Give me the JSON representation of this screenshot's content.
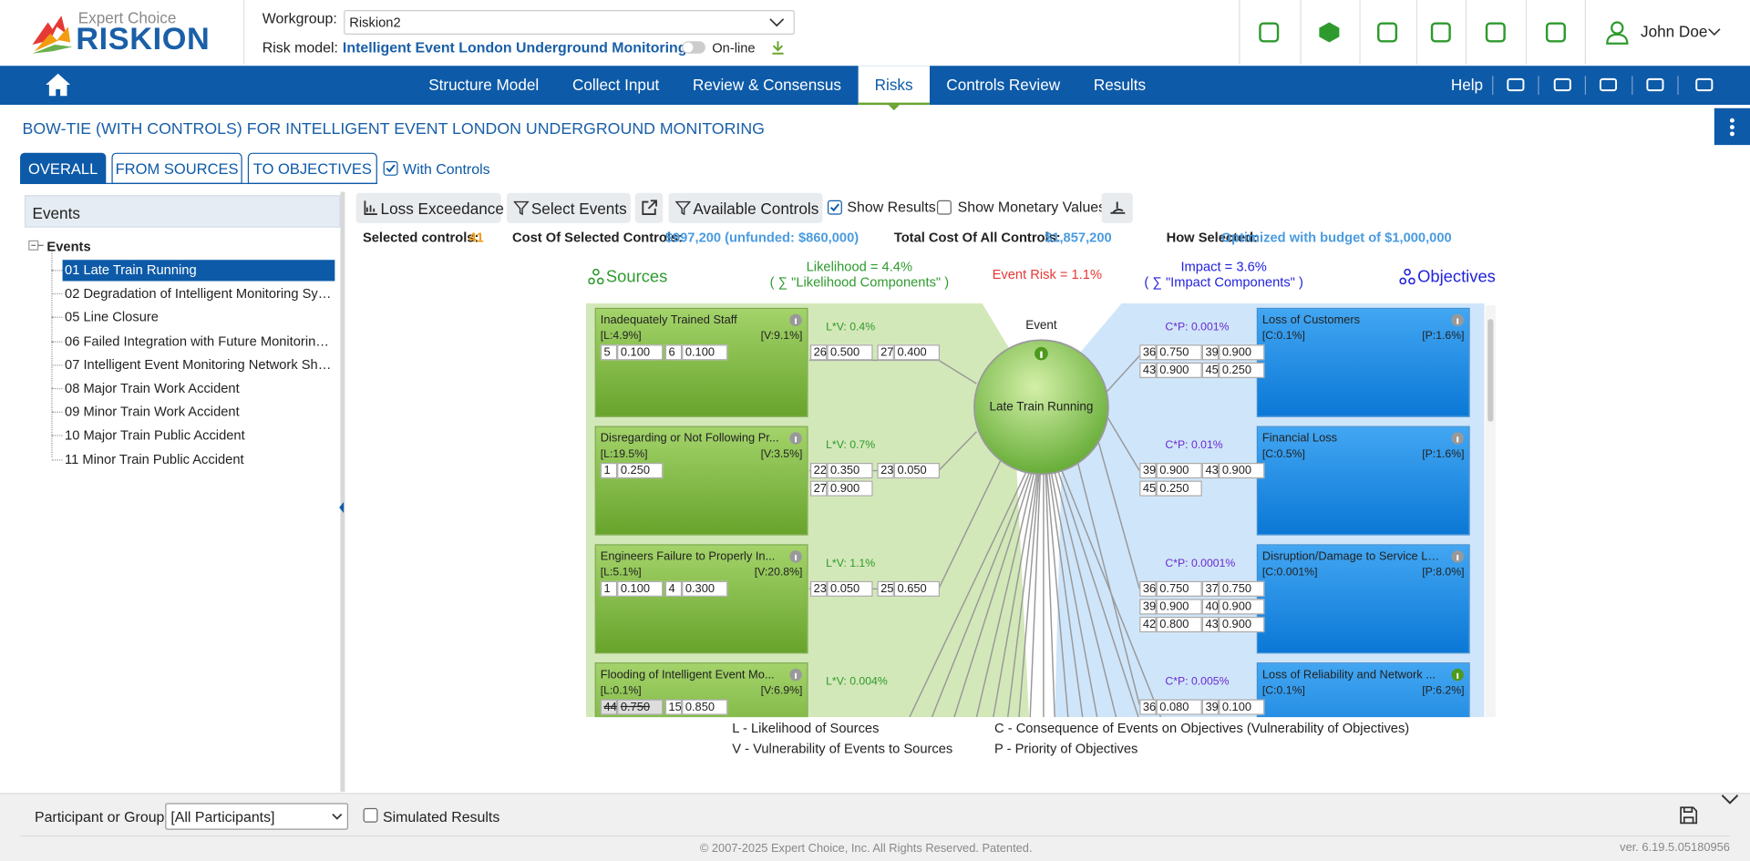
{
  "header": {
    "logo_top": "Expert Choice",
    "logo_main": "RISKION",
    "workgroup_label": "Workgroup:",
    "workgroup": "Riskion2",
    "risk_model_label": "Risk model:",
    "risk_model": "Intelligent Event London Underground Monitoring",
    "online": "On-line",
    "user": "John Doe"
  },
  "nav": {
    "tabs": [
      "Structure Model",
      "Collect Input",
      "Review & Consensus",
      "Risks",
      "Controls Review",
      "Results"
    ],
    "active": 3,
    "help": "Help"
  },
  "page_title": "BOW-TIE (WITH CONTROLS) FOR INTELLIGENT EVENT LONDON UNDERGROUND MONITORING",
  "view_tabs": {
    "tabs": [
      "OVERALL",
      "FROM SOURCES",
      "TO OBJECTIVES"
    ],
    "active": 0,
    "with_controls": {
      "label": "With Controls",
      "checked": true
    }
  },
  "events_panel": {
    "title": "Events",
    "root": "Events",
    "selected": 0,
    "items": [
      "01 Late Train Running",
      "02 Degradation of Intelligent Monitoring Syste...",
      "05 Line Closure",
      "06 Failed Integration with Future Monitoring S...",
      "07 Intelligent Event Monitoring Network Shut ...",
      "08 Major Train Work Accident",
      "09 Minor Train Work Accident",
      "10 Major Train Public Accident",
      "11 Minor Train Public Accident"
    ]
  },
  "toolbar": {
    "buttons": [
      "Loss Exceedance",
      "Select Events",
      "Available Controls"
    ],
    "show_results": {
      "label": "Show Results",
      "checked": true
    },
    "show_monetary": {
      "label": "Show Monetary Values",
      "checked": false
    }
  },
  "summary": [
    {
      "label": "Selected controls:",
      "value": "41"
    },
    {
      "label": "Cost Of Selected Controls:",
      "value": "$997,200 (unfunded: $860,000)"
    },
    {
      "label": "Total Cost Of All Controls:",
      "value": "$1,857,200"
    },
    {
      "label": "How Selected:",
      "value": "Optimized with budget of $1,000,000"
    }
  ],
  "bowtie": {
    "sources_label": "Sources",
    "objectives_label": "Objectives",
    "likelihood": "Likelihood = 4.4%",
    "likelihood_sub": "( ∑ \"Likelihood Components\" )",
    "event_risk": "Event Risk = 1.1%",
    "impact": "Impact = 3.6%",
    "impact_sub": "( ∑ \"Impact Components\" )",
    "event_label": "Event",
    "event_name": "Late Train Running",
    "sources": [
      {
        "name": "Inadequately Trained Staff",
        "l": "[L:4.9%]",
        "v": "[V:9.1%]",
        "controls": [
          {
            "id": "5",
            "value": "0.100"
          },
          {
            "id": "6",
            "value": "0.100"
          }
        ],
        "lv": "L*V: 0.4%",
        "links": [
          {
            "id": "26",
            "value": "0.500"
          },
          {
            "id": "27",
            "value": "0.400"
          }
        ]
      },
      {
        "name": "Disregarding or Not Following Pr...",
        "l": "[L:19.5%]",
        "v": "[V:3.5%]",
        "controls": [
          {
            "id": "1",
            "value": "0.250"
          }
        ],
        "lv": "L*V: 0.7%",
        "links": [
          {
            "id": "22",
            "value": "0.350"
          },
          {
            "id": "23",
            "value": "0.050"
          },
          {
            "id": "27",
            "value": "0.900"
          }
        ]
      },
      {
        "name": "Engineers Failure to Properly In...",
        "l": "[L:5.1%]",
        "v": "[V:20.8%]",
        "controls": [
          {
            "id": "1",
            "value": "0.100"
          },
          {
            "id": "4",
            "value": "0.300"
          }
        ],
        "lv": "L*V: 1.1%",
        "links": [
          {
            "id": "23",
            "value": "0.050"
          },
          {
            "id": "25",
            "value": "0.650"
          }
        ]
      },
      {
        "name": "Flooding of Intelligent Event Mo...",
        "l": "[L:0.1%]",
        "v": "[V:6.9%]",
        "controls": [
          {
            "id": "44",
            "value": "0.750",
            "struck": true
          },
          {
            "id": "15",
            "value": "0.850"
          }
        ],
        "lv": "L*V: 0.004%",
        "links": []
      }
    ],
    "objectives": [
      {
        "name": "Loss of Customers",
        "c": "[C:0.1%]",
        "p": "[P:1.6%]",
        "cp": "C*P: 0.001%",
        "links": [
          {
            "id": "36",
            "value": "0.750"
          },
          {
            "id": "39",
            "value": "0.900"
          },
          {
            "id": "43",
            "value": "0.900"
          },
          {
            "id": "45",
            "value": "0.250"
          }
        ]
      },
      {
        "name": "Financial Loss",
        "c": "[C:0.5%]",
        "p": "[P:1.6%]",
        "cp": "C*P: 0.01%",
        "links": [
          {
            "id": "39",
            "value": "0.900"
          },
          {
            "id": "43",
            "value": "0.900"
          },
          {
            "id": "45",
            "value": "0.250"
          }
        ]
      },
      {
        "name": "Disruption/Damage to Service Lin...",
        "c": "[C:0.001%]",
        "p": "[P:8.0%]",
        "cp": "C*P: 0.0001%",
        "links": [
          {
            "id": "36",
            "value": "0.750"
          },
          {
            "id": "37",
            "value": "0.750"
          },
          {
            "id": "39",
            "value": "0.900"
          },
          {
            "id": "40",
            "value": "0.900"
          },
          {
            "id": "42",
            "value": "0.800"
          },
          {
            "id": "43",
            "value": "0.900"
          }
        ]
      },
      {
        "name": "Loss of Reliability and Network ...",
        "c": "[C:0.1%]",
        "p": "[P:6.2%]",
        "cp": "C*P: 0.005%",
        "links": [
          {
            "id": "36",
            "value": "0.080"
          },
          {
            "id": "39",
            "value": "0.100"
          }
        ]
      }
    ]
  },
  "legend": [
    "L - Likelihood of Sources",
    "V - Vulnerability of Events to Sources",
    "C - Consequence of Events on Objectives (Vulnerability of Objectives)",
    "P - Priority of Objectives"
  ],
  "footer": {
    "participant_label": "Participant or Group:",
    "participant": "[All Participants]",
    "simulated": {
      "label": "Simulated Results",
      "checked": false
    },
    "copyright": "© 2007-2025 Expert Choice, Inc. All Rights Reserved. Patented.",
    "version": "ver. 6.19.5.05180956"
  }
}
